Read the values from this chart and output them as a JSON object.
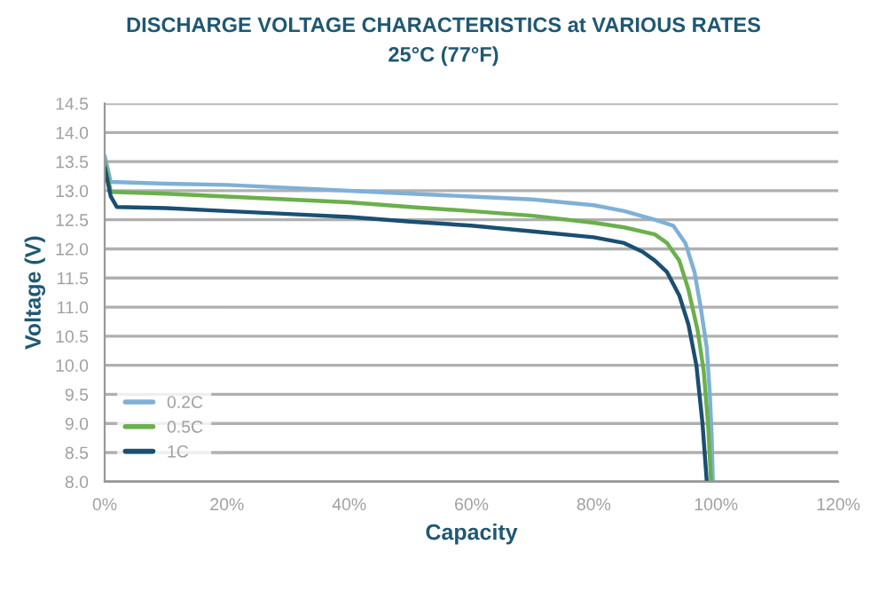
{
  "chart_data": {
    "type": "line",
    "title": "DISCHARGE VOLTAGE CHARACTERISTICS at VARIOUS RATES",
    "subtitle": "25°C (77°F)",
    "xlabel": "Capacity",
    "ylabel": "Voltage (V)",
    "series": [
      {
        "name": "0.2C",
        "color": "#7fb0d6",
        "x": [
          0,
          1,
          10,
          20,
          30,
          40,
          50,
          60,
          70,
          80,
          85,
          90,
          93,
          95,
          96.5,
          97.5,
          98.5,
          99,
          99.3,
          99.5
        ],
        "values": [
          13.6,
          13.15,
          13.12,
          13.1,
          13.05,
          13.0,
          12.95,
          12.9,
          12.85,
          12.75,
          12.65,
          12.5,
          12.4,
          12.1,
          11.6,
          11.0,
          10.3,
          9.5,
          8.8,
          8.0
        ]
      },
      {
        "name": "0.5C",
        "color": "#6ab04c",
        "x": [
          0,
          1,
          10,
          20,
          30,
          40,
          50,
          60,
          70,
          80,
          85,
          90,
          92,
          94,
          95.5,
          97,
          98,
          98.7,
          99.2
        ],
        "values": [
          13.5,
          12.98,
          12.95,
          12.9,
          12.85,
          12.8,
          12.72,
          12.65,
          12.57,
          12.45,
          12.37,
          12.25,
          12.1,
          11.8,
          11.3,
          10.6,
          9.9,
          9.0,
          8.0
        ]
      },
      {
        "name": "1C",
        "color": "#1a4f72",
        "x": [
          0,
          1,
          2,
          10,
          20,
          30,
          40,
          50,
          60,
          70,
          80,
          85,
          88,
          90,
          92,
          94,
          95.5,
          96.8,
          97.8,
          98.5
        ],
        "values": [
          13.4,
          12.9,
          12.72,
          12.7,
          12.65,
          12.6,
          12.55,
          12.47,
          12.4,
          12.3,
          12.2,
          12.1,
          11.95,
          11.8,
          11.6,
          11.2,
          10.7,
          10.0,
          9.0,
          8.0
        ]
      }
    ],
    "xlim": [
      0,
      120
    ],
    "xticks": [
      {
        "value": 0,
        "label": "0%"
      },
      {
        "value": 20,
        "label": "20%"
      },
      {
        "value": 40,
        "label": "40%"
      },
      {
        "value": 60,
        "label": "60%"
      },
      {
        "value": 80,
        "label": "80%"
      },
      {
        "value": 100,
        "label": "100%"
      },
      {
        "value": 120,
        "label": "120%"
      }
    ],
    "ylim": [
      8,
      14.5
    ],
    "yticks": [
      {
        "value": 8,
        "label": "8.0"
      },
      8.5,
      {
        "value": 9,
        "label": "9.0"
      },
      9.5,
      {
        "value": 10,
        "label": "10.0"
      },
      10.5,
      {
        "value": 11,
        "label": "11.0"
      },
      11.5,
      {
        "value": 12,
        "label": "12.0"
      },
      12.5,
      {
        "value": 13,
        "label": "13.0"
      },
      13.5,
      {
        "value": 14,
        "label": "14.0"
      },
      14.5
    ],
    "grid": "y",
    "legend": "bottom left",
    "marker": "none",
    "line_style": "solid"
  }
}
